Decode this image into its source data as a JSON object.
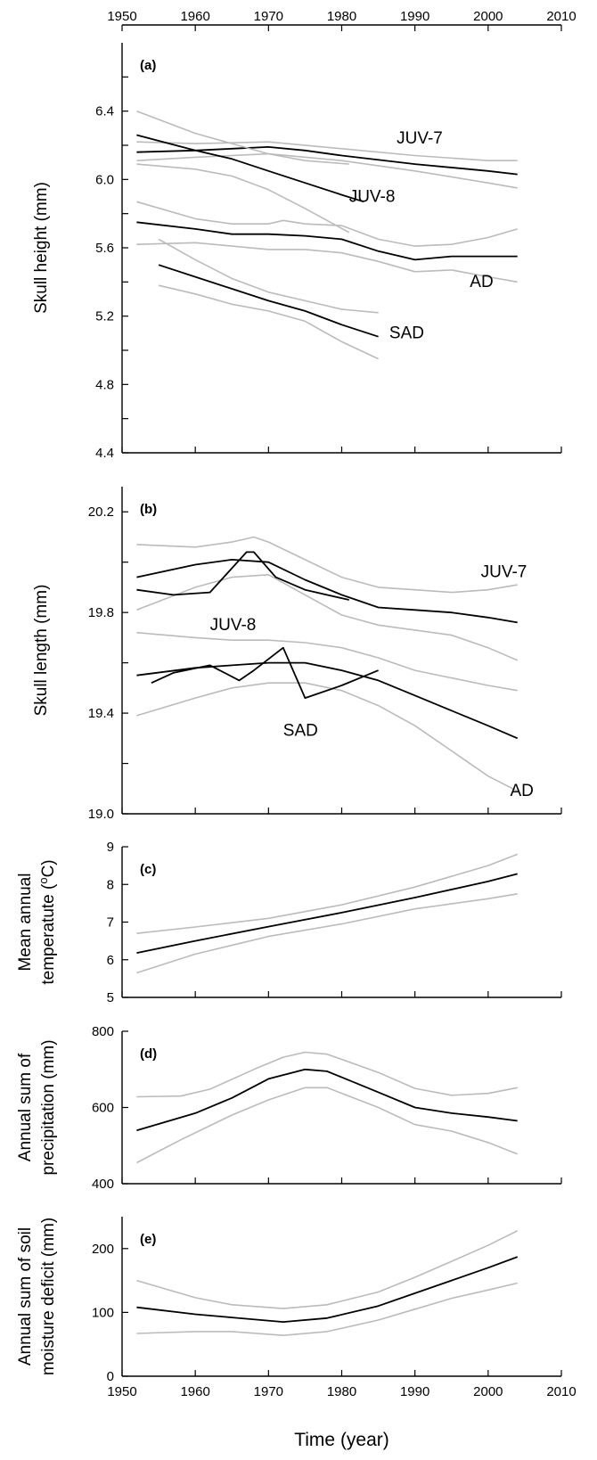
{
  "figure": {
    "x_title": "Time (year)",
    "x_ticks": [
      1950,
      1960,
      1970,
      1980,
      1990,
      2000,
      2010
    ]
  },
  "chart_data": [
    {
      "panel": "(a)",
      "type": "line",
      "ylabel": "Skull height (mm)",
      "xlim": [
        1950,
        2010
      ],
      "ylim": [
        4.4,
        6.8
      ],
      "y_ticks": [
        "4.4",
        "4.8",
        "5.2",
        "5.6",
        "6.0",
        "6.4"
      ],
      "series": [
        {
          "name": "JUV-7",
          "role": "fit",
          "x": [
            1952,
            1960,
            1965,
            1970,
            1975,
            1980,
            1990,
            2000,
            2004
          ],
          "y": [
            6.16,
            6.17,
            6.18,
            6.19,
            6.17,
            6.14,
            6.09,
            6.05,
            6.03
          ]
        },
        {
          "role": "ci",
          "color": "#bbbbbb",
          "x": [
            1952,
            1960,
            1970,
            1980,
            1990,
            2000,
            2004
          ],
          "y": [
            6.22,
            6.21,
            6.22,
            6.18,
            6.14,
            6.11,
            6.11
          ]
        },
        {
          "role": "ci",
          "color": "#bbbbbb",
          "x": [
            1952,
            1960,
            1970,
            1980,
            1990,
            2000,
            2004
          ],
          "y": [
            6.11,
            6.13,
            6.15,
            6.11,
            6.05,
            5.98,
            5.95
          ]
        },
        {
          "name": "JUV-8",
          "role": "fit",
          "x": [
            1952,
            1960,
            1965,
            1970,
            1975,
            1980,
            1983
          ],
          "y": [
            6.26,
            6.17,
            6.12,
            6.05,
            5.98,
            5.91,
            5.87
          ]
        },
        {
          "role": "ci",
          "color": "#bbbbbb",
          "x": [
            1952,
            1960,
            1965,
            1970,
            1975,
            1981
          ],
          "y": [
            6.4,
            6.27,
            6.21,
            6.15,
            6.11,
            6.09
          ]
        },
        {
          "role": "ci",
          "color": "#bbbbbb",
          "x": [
            1952,
            1960,
            1965,
            1970,
            1975,
            1981
          ],
          "y": [
            6.09,
            6.06,
            6.02,
            5.94,
            5.83,
            5.69
          ]
        },
        {
          "name": "AD",
          "role": "fit",
          "x": [
            1952,
            1960,
            1965,
            1970,
            1975,
            1980,
            1985,
            1990,
            1995,
            2000,
            2004
          ],
          "y": [
            5.75,
            5.71,
            5.68,
            5.68,
            5.67,
            5.65,
            5.58,
            5.53,
            5.55,
            5.55,
            5.55
          ]
        },
        {
          "role": "ci",
          "color": "#bbbbbb",
          "x": [
            1952,
            1960,
            1965,
            1970,
            1972,
            1975,
            1980,
            1985,
            1990,
            1995,
            2000,
            2004
          ],
          "y": [
            5.87,
            5.77,
            5.74,
            5.74,
            5.76,
            5.74,
            5.73,
            5.65,
            5.61,
            5.62,
            5.66,
            5.71
          ]
        },
        {
          "role": "ci",
          "color": "#bbbbbb",
          "x": [
            1952,
            1960,
            1965,
            1970,
            1975,
            1980,
            1985,
            1990,
            1995,
            2000,
            2004
          ],
          "y": [
            5.62,
            5.63,
            5.61,
            5.59,
            5.59,
            5.57,
            5.52,
            5.46,
            5.47,
            5.43,
            5.4
          ]
        },
        {
          "name": "SAD",
          "role": "fit",
          "x": [
            1955,
            1960,
            1965,
            1970,
            1975,
            1980,
            1985
          ],
          "y": [
            5.5,
            5.43,
            5.36,
            5.29,
            5.23,
            5.15,
            5.08
          ]
        },
        {
          "role": "ci",
          "color": "#bbbbbb",
          "x": [
            1955,
            1960,
            1965,
            1970,
            1975,
            1980,
            1985
          ],
          "y": [
            5.65,
            5.53,
            5.42,
            5.34,
            5.29,
            5.24,
            5.22
          ]
        },
        {
          "role": "ci",
          "color": "#bbbbbb",
          "x": [
            1955,
            1960,
            1965,
            1970,
            1975,
            1980,
            1985
          ],
          "y": [
            5.38,
            5.33,
            5.27,
            5.23,
            5.17,
            5.05,
            4.95
          ]
        }
      ],
      "labels": [
        {
          "text": "JUV-7",
          "x": 1987.5,
          "y": 6.21
        },
        {
          "text": "JUV-8",
          "x": 1981,
          "y": 5.87
        },
        {
          "text": "AD",
          "x": 1997.5,
          "y": 5.37
        },
        {
          "text": "SAD",
          "x": 1986.5,
          "y": 5.07
        }
      ]
    },
    {
      "panel": "(b)",
      "type": "line",
      "ylabel": "Skull length (mm)",
      "xlim": [
        1950,
        2010
      ],
      "ylim": [
        19.0,
        20.3
      ],
      "y_ticks": [
        "19.0",
        "19.4",
        "19.8",
        "20.2"
      ],
      "series": [
        {
          "name": "JUV-7",
          "role": "fit",
          "x": [
            1952,
            1960,
            1965,
            1970,
            1975,
            1980,
            1985,
            1990,
            1995,
            2000,
            2004
          ],
          "y": [
            19.94,
            19.99,
            20.01,
            20.0,
            19.93,
            19.87,
            19.82,
            19.81,
            19.8,
            19.78,
            19.76
          ]
        },
        {
          "role": "ci",
          "color": "#bbbbbb",
          "x": [
            1952,
            1960,
            1965,
            1968,
            1970,
            1975,
            1980,
            1985,
            1990,
            1995,
            2000,
            2004
          ],
          "y": [
            20.07,
            20.06,
            20.08,
            20.1,
            20.08,
            20.01,
            19.94,
            19.9,
            19.89,
            19.88,
            19.89,
            19.91
          ]
        },
        {
          "role": "ci",
          "color": "#bbbbbb",
          "x": [
            1952,
            1960,
            1965,
            1970,
            1975,
            1980,
            1985,
            1990,
            1995,
            2000,
            2004
          ],
          "y": [
            19.81,
            19.9,
            19.94,
            19.95,
            19.87,
            19.79,
            19.75,
            19.73,
            19.71,
            19.66,
            19.61
          ]
        },
        {
          "name": "JUV-8",
          "role": "fit",
          "x": [
            1952,
            1957,
            1962,
            1967,
            1968,
            1971,
            1975,
            1981
          ],
          "y": [
            19.89,
            19.87,
            19.88,
            20.04,
            20.04,
            19.94,
            19.89,
            19.85
          ]
        },
        {
          "name": "AD",
          "role": "fit",
          "x": [
            1952,
            1960,
            1965,
            1970,
            1975,
            1980,
            1985,
            1990,
            1995,
            2000,
            2004
          ],
          "y": [
            19.55,
            19.58,
            19.59,
            19.6,
            19.6,
            19.57,
            19.53,
            19.47,
            19.41,
            19.35,
            19.3
          ]
        },
        {
          "role": "ci",
          "color": "#bbbbbb",
          "x": [
            1952,
            1960,
            1965,
            1970,
            1975,
            1980,
            1985,
            1990,
            1995,
            2000,
            2004
          ],
          "y": [
            19.72,
            19.7,
            19.69,
            19.69,
            19.68,
            19.66,
            19.62,
            19.57,
            19.54,
            19.51,
            19.49
          ]
        },
        {
          "role": "ci",
          "color": "#bbbbbb",
          "x": [
            1952,
            1960,
            1965,
            1970,
            1975,
            1980,
            1985,
            1990,
            1995,
            2000,
            2004
          ],
          "y": [
            19.39,
            19.46,
            19.5,
            19.52,
            19.52,
            19.49,
            19.43,
            19.35,
            19.25,
            19.15,
            19.09
          ]
        },
        {
          "name": "SAD",
          "role": "fit",
          "x": [
            1954,
            1957,
            1962,
            1966,
            1968,
            1972,
            1975,
            1980,
            1985
          ],
          "y": [
            19.52,
            19.56,
            19.59,
            19.53,
            19.57,
            19.66,
            19.46,
            19.51,
            19.57
          ]
        }
      ],
      "labels": [
        {
          "text": "JUV-7",
          "x": 1999,
          "y": 19.94
        },
        {
          "text": "JUV-8",
          "x": 1962,
          "y": 19.73
        },
        {
          "text": "SAD",
          "x": 1972,
          "y": 19.31
        },
        {
          "text": "AD",
          "x": 2003,
          "y": 19.07
        }
      ]
    },
    {
      "panel": "(c)",
      "type": "line",
      "ylabel_lines": [
        "Mean annual",
        "temperatute (",
        "o",
        "C)"
      ],
      "xlim": [
        1950,
        2010
      ],
      "ylim": [
        5,
        9
      ],
      "y_ticks": [
        "5",
        "6",
        "7",
        "8",
        "9"
      ],
      "series": [
        {
          "role": "fit",
          "x": [
            1952,
            1960,
            1970,
            1980,
            1990,
            2000,
            2004
          ],
          "y": [
            6.18,
            6.5,
            6.88,
            7.25,
            7.65,
            8.08,
            8.28
          ]
        },
        {
          "role": "ci",
          "color": "#bbbbbb",
          "x": [
            1952,
            1960,
            1970,
            1980,
            1990,
            2000,
            2004
          ],
          "y": [
            6.7,
            6.87,
            7.1,
            7.46,
            7.93,
            8.5,
            8.8
          ]
        },
        {
          "role": "ci",
          "color": "#bbbbbb",
          "x": [
            1952,
            1960,
            1970,
            1980,
            1990,
            2000,
            2004
          ],
          "y": [
            5.65,
            6.15,
            6.62,
            6.95,
            7.35,
            7.62,
            7.75
          ]
        }
      ]
    },
    {
      "panel": "(d)",
      "type": "line",
      "ylabel_lines": [
        "Annual sum of",
        "precipitation (mm)"
      ],
      "xlim": [
        1950,
        2010
      ],
      "ylim": [
        400,
        800
      ],
      "y_ticks": [
        "400",
        "600",
        "800"
      ],
      "series": [
        {
          "role": "fit",
          "x": [
            1952,
            1960,
            1965,
            1970,
            1975,
            1978,
            1985,
            1990,
            1995,
            2000,
            2004
          ],
          "y": [
            540,
            585,
            625,
            675,
            700,
            695,
            640,
            600,
            585,
            575,
            565
          ]
        },
        {
          "role": "ci",
          "color": "#bbbbbb",
          "x": [
            1952,
            1958,
            1962,
            1968,
            1972,
            1975,
            1978,
            1985,
            1990,
            1995,
            2000,
            2004
          ],
          "y": [
            628,
            630,
            648,
            700,
            732,
            745,
            740,
            692,
            650,
            632,
            637,
            652
          ]
        },
        {
          "role": "ci",
          "color": "#bbbbbb",
          "x": [
            1952,
            1958,
            1965,
            1970,
            1975,
            1978,
            1985,
            1990,
            1995,
            2000,
            2004
          ],
          "y": [
            455,
            515,
            580,
            620,
            652,
            652,
            600,
            555,
            538,
            508,
            478
          ]
        }
      ]
    },
    {
      "panel": "(e)",
      "type": "line",
      "ylabel_lines": [
        "Annual sum of soil",
        "moisture deficit (mm)"
      ],
      "xlim": [
        1950,
        2010
      ],
      "ylim": [
        0,
        250
      ],
      "y_ticks": [
        "0",
        "100",
        "200"
      ],
      "series": [
        {
          "role": "fit",
          "x": [
            1952,
            1960,
            1965,
            1972,
            1978,
            1985,
            1990,
            1995,
            2000,
            2004
          ],
          "y": [
            108,
            97,
            92,
            85,
            91,
            110,
            130,
            150,
            170,
            187
          ]
        },
        {
          "role": "ci",
          "color": "#bbbbbb",
          "x": [
            1952,
            1960,
            1965,
            1972,
            1978,
            1985,
            1990,
            1995,
            2000,
            2004
          ],
          "y": [
            150,
            123,
            112,
            106,
            112,
            132,
            155,
            180,
            205,
            228
          ]
        },
        {
          "role": "ci",
          "color": "#bbbbbb",
          "x": [
            1952,
            1960,
            1965,
            1972,
            1978,
            1985,
            1990,
            1995,
            2000,
            2004
          ],
          "y": [
            67,
            70,
            70,
            64,
            70,
            88,
            105,
            122,
            135,
            146
          ]
        }
      ]
    }
  ]
}
